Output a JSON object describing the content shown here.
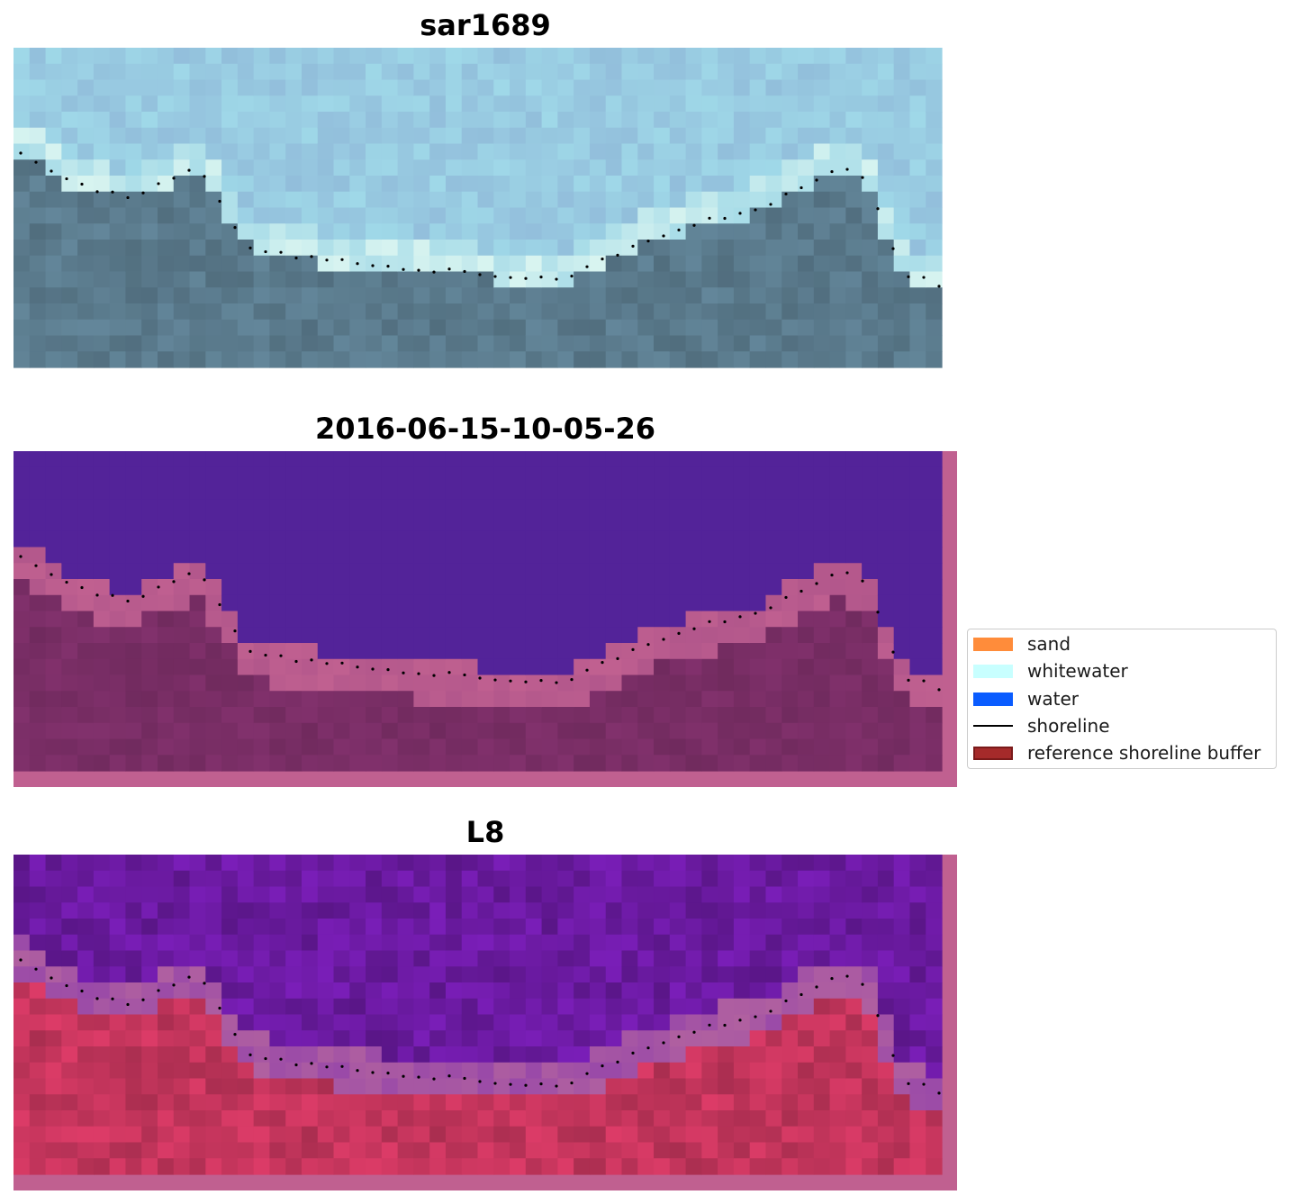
{
  "panels": [
    {
      "title": "sar1689",
      "style": "rgb"
    },
    {
      "title": "2016-06-15-10-05-26",
      "style": "classified"
    },
    {
      "title": "L8",
      "style": "ndwi"
    }
  ],
  "legend": {
    "items": [
      {
        "label": "sand",
        "kind": "patch",
        "color": "#ff8c3a"
      },
      {
        "label": "whitewater",
        "kind": "patch",
        "color": "#c8ffff"
      },
      {
        "label": "water",
        "kind": "patch",
        "color": "#0a5cff"
      },
      {
        "label": "shoreline",
        "kind": "line",
        "color": "#000000"
      },
      {
        "label": "reference shoreline buffer",
        "kind": "patch",
        "color": "#a52a2a",
        "edge": "#7a1a1a"
      }
    ]
  },
  "colors": {
    "buffer_overlay": "#c06090",
    "classified_water": "#532399",
    "classified_land": "#7a2e66",
    "ndwi_water": "#6a1aa0",
    "ndwi_land": "#c8365e",
    "rgb_sky": "#8fb8d8",
    "rgb_land": "#5a7a8c",
    "shoreline_points": "#000000"
  }
}
